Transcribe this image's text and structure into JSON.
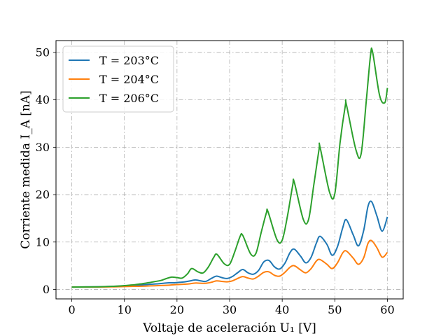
{
  "chart_data": {
    "type": "line",
    "xlabel": "Voltaje de aceleración U₁ [V]",
    "ylabel": "Corriente medida I_A [nA]",
    "xlim": [
      -3,
      63
    ],
    "ylim": [
      -2,
      52.5
    ],
    "xticks": [
      0,
      10,
      20,
      30,
      40,
      50,
      60
    ],
    "yticks": [
      0,
      10,
      20,
      30,
      40,
      50
    ],
    "grid": true,
    "grid_style": "dash-dot",
    "legend_position": "top-left",
    "series": [
      {
        "name": "T = 203°C",
        "color": "#1f77b4",
        "x": [
          0,
          5,
          8,
          10,
          12,
          14,
          15,
          16.5,
          17.5,
          18.5,
          19.5,
          20.5,
          21.5,
          22.5,
          23.5,
          24.5,
          25.5,
          26.5,
          27.5,
          28.5,
          29.5,
          30.5,
          31.5,
          32.5,
          33.5,
          34.5,
          35.5,
          36.5,
          37.5,
          38.5,
          39.5,
          40.5,
          41.5,
          42.3,
          43.5,
          44.5,
          45.5,
          46.5,
          47.2,
          48.5,
          49.5,
          50.5,
          51.5,
          52.2,
          53.5,
          54.5,
          55.5,
          56.3,
          57,
          58,
          59,
          60
        ],
        "y": [
          0.5,
          0.55,
          0.65,
          0.75,
          0.9,
          1.0,
          1.1,
          1.2,
          1.3,
          1.4,
          1.4,
          1.5,
          1.6,
          1.8,
          2.0,
          1.8,
          1.7,
          2.3,
          2.8,
          2.5,
          2.3,
          2.7,
          3.5,
          4.2,
          3.5,
          3.2,
          4.0,
          5.8,
          6.1,
          4.8,
          4.3,
          5.5,
          7.8,
          8.5,
          7.0,
          5.6,
          6.8,
          9.8,
          11.2,
          9.5,
          7.2,
          9.0,
          13.0,
          14.7,
          11.5,
          9.2,
          12.5,
          17.5,
          18.5,
          15.5,
          12.3,
          15.3
        ]
      },
      {
        "name": "T = 204°C",
        "color": "#ff7f0e",
        "x": [
          0,
          5,
          8,
          10,
          12,
          14,
          15,
          16.5,
          17.5,
          18.5,
          19.5,
          20.5,
          21.5,
          22.5,
          23.5,
          24.5,
          25.5,
          26.5,
          27.5,
          28.5,
          29.5,
          30.5,
          31.5,
          32.5,
          33.5,
          34.5,
          35.5,
          36.5,
          37.5,
          38.5,
          39.5,
          40.5,
          41.5,
          42.3,
          43.5,
          44.5,
          45.5,
          46.5,
          47.2,
          48.5,
          49.5,
          50.5,
          51.5,
          52.2,
          53.5,
          54.5,
          55.5,
          56.3,
          57,
          58,
          59,
          60
        ],
        "y": [
          0.5,
          0.5,
          0.55,
          0.6,
          0.65,
          0.7,
          0.75,
          0.8,
          0.85,
          0.9,
          1.0,
          1.05,
          1.1,
          1.2,
          1.35,
          1.3,
          1.3,
          1.5,
          1.8,
          1.7,
          1.6,
          1.8,
          2.3,
          2.7,
          2.4,
          2.2,
          2.8,
          3.6,
          3.7,
          3.0,
          2.8,
          3.6,
          4.7,
          5.0,
          4.1,
          3.5,
          4.4,
          6.0,
          6.3,
          5.3,
          4.4,
          5.6,
          7.7,
          8.1,
          6.6,
          5.3,
          6.7,
          9.7,
          10.3,
          8.8,
          6.8,
          7.8
        ]
      },
      {
        "name": "T = 206°C",
        "color": "#2ca02c",
        "x": [
          0,
          5,
          8,
          10,
          11,
          12,
          13,
          14,
          15,
          16,
          17,
          18,
          19,
          20,
          21,
          22,
          22.8,
          24,
          25,
          26,
          27,
          27.6,
          29,
          30,
          31,
          32,
          32.5,
          34,
          35,
          36,
          37,
          37.3,
          39,
          40,
          41,
          42,
          42.3,
          44,
          45,
          46,
          47,
          47.2,
          49,
          50,
          51,
          52,
          52.2,
          54,
          55,
          56,
          56.8,
          57.2,
          58.5,
          59.5,
          60
        ],
        "y": [
          0.5,
          0.55,
          0.65,
          0.8,
          0.9,
          1.0,
          1.15,
          1.3,
          1.5,
          1.7,
          1.9,
          2.3,
          2.6,
          2.5,
          2.4,
          3.3,
          4.4,
          3.7,
          3.5,
          4.8,
          6.8,
          7.4,
          5.4,
          5.3,
          8.0,
          11.2,
          11.4,
          7.5,
          7.6,
          12.0,
          16.2,
          16.4,
          10.5,
          10.4,
          15.5,
          22.0,
          22.6,
          14.8,
          14.7,
          22.0,
          29.5,
          30.0,
          20.5,
          20.2,
          31.0,
          38.8,
          39.0,
          29.5,
          28.6,
          40.0,
          49.5,
          50.0,
          41.0,
          39.4,
          42.5
        ]
      }
    ]
  }
}
